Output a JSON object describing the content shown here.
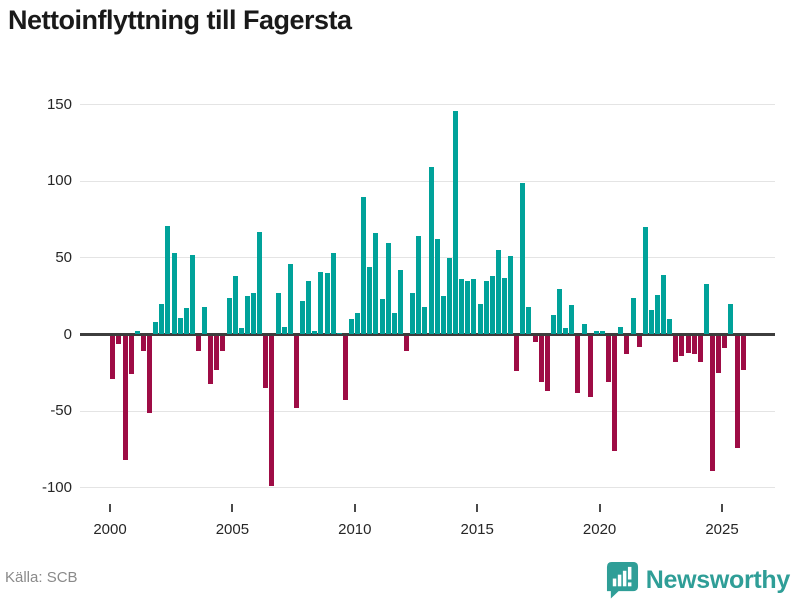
{
  "header": {
    "title": "Nettoinflyttning till Fagersta"
  },
  "footer": {
    "source": "Källa: SCB",
    "logo_text": "Newsworthy"
  },
  "colors": {
    "positive": "#00a29a",
    "negative": "#9e0c45",
    "logo": "#2f9e97",
    "title_text": "#1a1a1a",
    "axis_line": "#3d3d3d",
    "gridline": "#e4e4e4",
    "source_text": "#8a8a8a"
  },
  "chart_data": {
    "type": "bar",
    "title": "Nettoinflyttning till Fagersta",
    "xlabel": "",
    "ylabel": "",
    "frequency": "quarterly",
    "start_year": 2000,
    "end_period": "2025-Q4",
    "ylim": [
      -110,
      160
    ],
    "grid": true,
    "y_ticks": [
      150,
      100,
      50,
      0,
      -50,
      -100
    ],
    "y_tick_labels": [
      "150",
      "100",
      "50",
      "0",
      "-50",
      "-100"
    ],
    "x_ticks": [
      2000,
      2005,
      2010,
      2015,
      2020,
      2025
    ],
    "x_tick_labels": [
      "2000",
      "2005",
      "2010",
      "2015",
      "2020",
      "2025"
    ],
    "values": [
      -28,
      -5,
      -81,
      -25,
      2,
      -10,
      -50,
      8,
      20,
      71,
      53,
      11,
      17,
      52,
      -10,
      18,
      -31,
      -22,
      -10,
      24,
      38,
      4,
      25,
      27,
      67,
      -34,
      -98,
      27,
      5,
      46,
      -47,
      22,
      35,
      2,
      41,
      40,
      53,
      1,
      -42,
      10,
      14,
      90,
      44,
      66,
      23,
      60,
      14,
      42,
      -10,
      27,
      64,
      18,
      109,
      62,
      25,
      50,
      146,
      36,
      35,
      36,
      20,
      35,
      38,
      55,
      37,
      51,
      -23,
      99,
      18,
      -4,
      -30,
      -36,
      13,
      30,
      4,
      19,
      -37,
      7,
      -40,
      2,
      2,
      -30,
      -75,
      5,
      -12,
      24,
      -7,
      70,
      16,
      26,
      39,
      10,
      -17,
      -13,
      -11,
      -12,
      -17,
      33,
      -88,
      -24,
      -8,
      20,
      -73,
      -22
    ]
  }
}
